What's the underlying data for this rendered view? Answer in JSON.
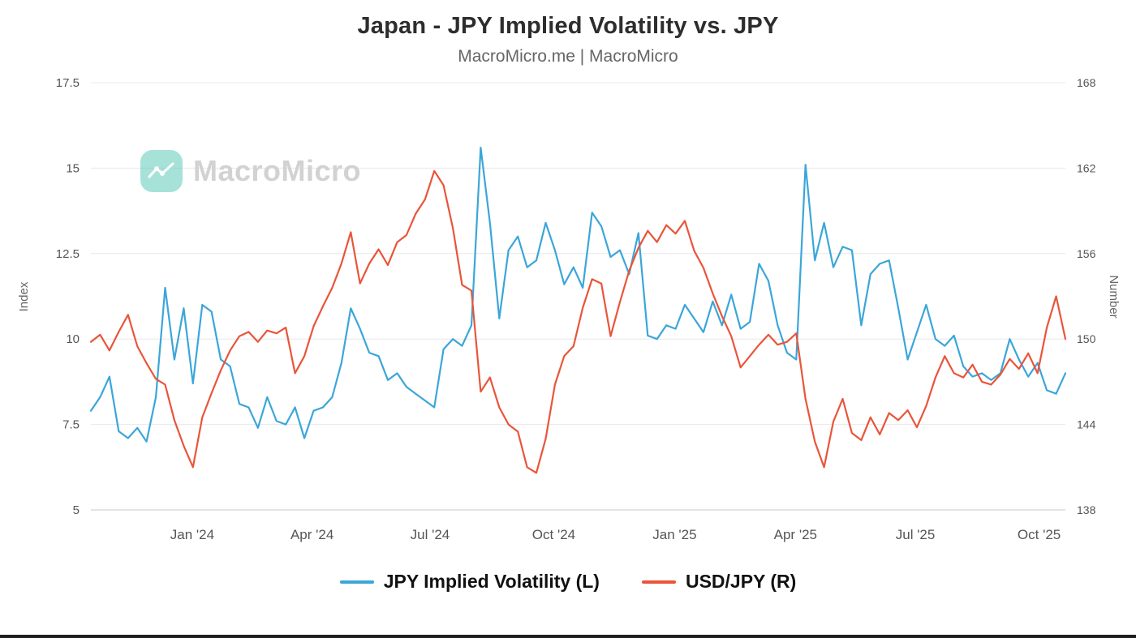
{
  "header": {
    "title": "Japan - JPY Implied Volatility vs. JPY",
    "subtitle": "MacroMicro.me | MacroMicro"
  },
  "watermark": {
    "brand": "MacroMicro",
    "logo_color": "#5fcbba",
    "text_color": "#d2d2d2"
  },
  "chart_data": {
    "type": "line",
    "title": "Japan - JPY Implied Volatility vs. JPY",
    "grid": "horizontal-only",
    "legend_position": "bottom-center",
    "left_axis": {
      "label": "Index",
      "min": 5,
      "max": 17.5,
      "ticks": [
        5,
        7.5,
        10,
        12.5,
        15,
        17.5
      ],
      "tick_labels": [
        "5",
        "7.5",
        "10",
        "12.5",
        "15",
        "17.5"
      ]
    },
    "right_axis": {
      "label": "Number",
      "min": 138,
      "max": 168,
      "ticks": [
        138,
        144,
        150,
        156,
        162,
        168
      ],
      "tick_labels": [
        "138",
        "144",
        "150",
        "156",
        "162",
        "168"
      ]
    },
    "x_ticks": [
      {
        "label": "Jan '24",
        "pos": 0.104
      },
      {
        "label": "Apr '24",
        "pos": 0.227
      },
      {
        "label": "Jul '24",
        "pos": 0.348
      },
      {
        "label": "Oct '24",
        "pos": 0.475
      },
      {
        "label": "Jan '25",
        "pos": 0.599
      },
      {
        "label": "Apr '25",
        "pos": 0.723
      },
      {
        "label": "Jul '25",
        "pos": 0.846
      },
      {
        "label": "Oct '25",
        "pos": 0.973
      }
    ],
    "series": [
      {
        "name": "JPY Implied Volatility (L)",
        "axis": "left",
        "color": "#3ba6d9",
        "values": [
          7.9,
          8.3,
          8.9,
          7.3,
          7.1,
          7.4,
          7.0,
          8.3,
          11.5,
          9.4,
          10.9,
          8.7,
          11.0,
          10.8,
          9.4,
          9.2,
          8.1,
          8.0,
          7.4,
          8.3,
          7.6,
          7.5,
          8.0,
          7.1,
          7.9,
          8.0,
          8.3,
          9.3,
          10.9,
          10.3,
          9.6,
          9.5,
          8.8,
          9.0,
          8.6,
          8.4,
          8.2,
          8.0,
          9.7,
          10.0,
          9.8,
          10.4,
          15.6,
          13.4,
          10.6,
          12.6,
          13.0,
          12.1,
          12.3,
          13.4,
          12.6,
          11.6,
          12.1,
          11.5,
          13.7,
          13.3,
          12.4,
          12.6,
          11.9,
          13.1,
          10.1,
          10.0,
          10.4,
          10.3,
          11.0,
          10.6,
          10.2,
          11.1,
          10.4,
          11.3,
          10.3,
          10.5,
          12.2,
          11.7,
          10.4,
          9.6,
          9.4,
          15.1,
          12.3,
          13.4,
          12.1,
          12.7,
          12.6,
          10.4,
          11.9,
          12.2,
          12.3,
          10.9,
          9.4,
          10.2,
          11.0,
          10.0,
          9.8,
          10.1,
          9.2,
          8.9,
          9.0,
          8.8,
          9.0,
          10.0,
          9.4,
          8.9,
          9.3,
          8.5,
          8.4,
          9.0
        ]
      },
      {
        "name": "USD/JPY (R)",
        "axis": "right",
        "color": "#e9553a",
        "values": [
          149.8,
          150.3,
          149.2,
          150.5,
          151.7,
          149.5,
          148.3,
          147.2,
          146.8,
          144.3,
          142.5,
          141.0,
          144.5,
          146.2,
          147.8,
          149.2,
          150.2,
          150.5,
          149.8,
          150.6,
          150.4,
          150.8,
          147.6,
          148.8,
          150.9,
          152.3,
          153.6,
          155.3,
          157.5,
          153.9,
          155.3,
          156.3,
          155.2,
          156.8,
          157.3,
          158.8,
          159.8,
          161.8,
          160.8,
          157.8,
          153.8,
          153.4,
          146.3,
          147.3,
          145.2,
          144.0,
          143.5,
          141.0,
          140.6,
          143.0,
          146.8,
          148.8,
          149.5,
          152.2,
          154.2,
          153.9,
          150.2,
          152.6,
          154.8,
          156.4,
          157.6,
          156.8,
          158.0,
          157.4,
          158.3,
          156.2,
          155.0,
          153.2,
          151.6,
          150.2,
          148.0,
          148.8,
          149.6,
          150.3,
          149.6,
          149.8,
          150.4,
          145.8,
          142.8,
          141.0,
          144.2,
          145.8,
          143.4,
          142.9,
          144.5,
          143.3,
          144.8,
          144.3,
          145.0,
          143.8,
          145.3,
          147.3,
          148.8,
          147.6,
          147.3,
          148.2,
          147.0,
          146.8,
          147.5,
          148.6,
          147.9,
          149.0,
          147.6,
          150.8,
          153.0,
          150.0
        ]
      }
    ]
  },
  "legend": {
    "items": [
      {
        "label": "JPY Implied Volatility (L)",
        "color": "#3ba6d9"
      },
      {
        "label": "USD/JPY (R)",
        "color": "#e9553a"
      }
    ]
  }
}
